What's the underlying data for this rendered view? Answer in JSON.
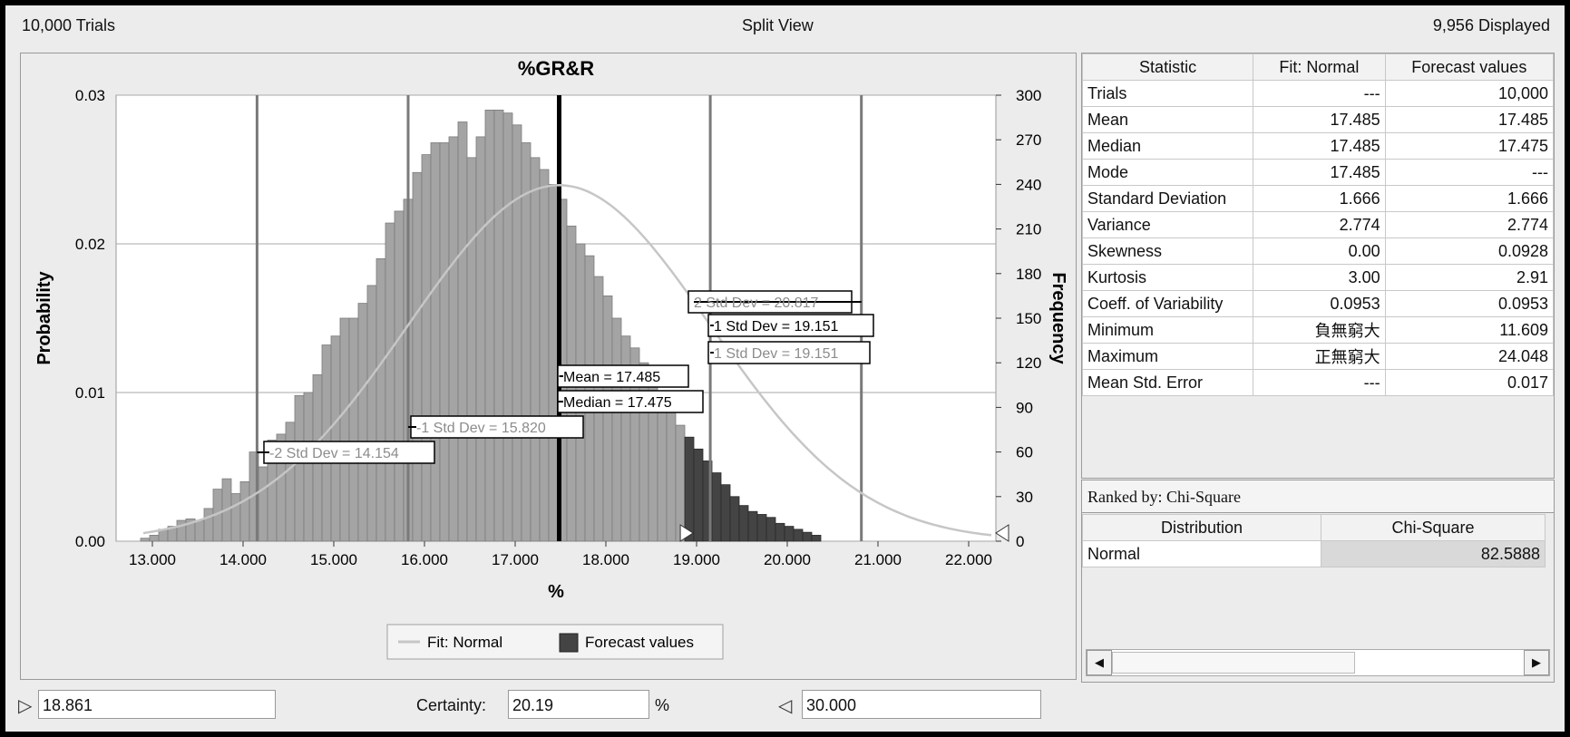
{
  "header": {
    "trials": "10,000 Trials",
    "view": "Split View",
    "displayed": "9,956 Displayed"
  },
  "chart_data": {
    "type": "bar",
    "title": "%GR&R",
    "xlabel": "%",
    "ylabel_left": "Probability",
    "ylabel_right": "Frequency",
    "xlim": [
      12.6,
      22.3
    ],
    "ylim_left": [
      0,
      0.03
    ],
    "ylim_right": [
      0,
      300
    ],
    "x_ticks": [
      "13.000",
      "14.000",
      "15.000",
      "16.000",
      "17.000",
      "18.000",
      "19.000",
      "20.000",
      "21.000",
      "22.000"
    ],
    "y_ticks_left": [
      "0.00",
      "0.01",
      "0.02",
      "0.03"
    ],
    "y_ticks_right": [
      "0",
      "30",
      "60",
      "90",
      "120",
      "150",
      "180",
      "210",
      "240",
      "270",
      "300"
    ],
    "bins": {
      "start": 12.87,
      "width": 0.1,
      "frequency": [
        2,
        4,
        8,
        10,
        14,
        15,
        14,
        22,
        35,
        42,
        32,
        40,
        60,
        50,
        68,
        72,
        80,
        98,
        100,
        112,
        132,
        138,
        150,
        150,
        160,
        172,
        190,
        214,
        222,
        230,
        248,
        260,
        268,
        268,
        272,
        282,
        258,
        272,
        290,
        290,
        288,
        280,
        268,
        258,
        250,
        240,
        230,
        212,
        200,
        192,
        178,
        165,
        150,
        138,
        130,
        120,
        110,
        98,
        88,
        78,
        70,
        62,
        54,
        46,
        38,
        30,
        24,
        20,
        18,
        16,
        12,
        10,
        8,
        6,
        4
      ],
      "split_at": 18.861
    },
    "series": [
      {
        "name": "Fit: Normal",
        "type": "line",
        "mean": 17.485,
        "std": 1.666,
        "color": "#c6c6c6"
      },
      {
        "name": "Forecast values",
        "type": "bar",
        "color_in": "#a4a4a4",
        "color_out": "#444444"
      }
    ],
    "annotations": [
      {
        "label": "2 Std Dev = 20.817",
        "x": 20.817,
        "style": "gray"
      },
      {
        "label": "1 Std Dev = 19.151",
        "x": 19.151,
        "style": "black"
      },
      {
        "label": "1 Std Dev = 19.151",
        "x": 19.151,
        "style": "gray"
      },
      {
        "label": "Mean = 17.485",
        "x": 17.485,
        "style": "black"
      },
      {
        "label": "Median = 17.475",
        "x": 17.475,
        "style": "black"
      },
      {
        "label": "-1 Std Dev = 15.820",
        "x": 15.82,
        "style": "gray"
      },
      {
        "label": "-2 Std Dev = 14.154",
        "x": 14.154,
        "style": "gray"
      }
    ],
    "legend": [
      "Fit: Normal",
      "Forecast values"
    ],
    "legend_position": "bottom-center",
    "grid": true
  },
  "stats": {
    "headers": [
      "Statistic",
      "Fit: Normal",
      "Forecast values"
    ],
    "rows": [
      [
        "Trials",
        "---",
        "10,000"
      ],
      [
        "Mean",
        "17.485",
        "17.485"
      ],
      [
        "Median",
        "17.485",
        "17.475"
      ],
      [
        "Mode",
        "17.485",
        "---"
      ],
      [
        "Standard Deviation",
        "1.666",
        "1.666"
      ],
      [
        "Variance",
        "2.774",
        "2.774"
      ],
      [
        "Skewness",
        "0.00",
        "0.0928"
      ],
      [
        "Kurtosis",
        "3.00",
        "2.91"
      ],
      [
        "Coeff. of Variability",
        "0.0953",
        "0.0953"
      ],
      [
        "Minimum",
        "負無窮大",
        "11.609"
      ],
      [
        "Maximum",
        "正無窮大",
        "24.048"
      ],
      [
        "Mean Std. Error",
        "---",
        "0.017"
      ]
    ]
  },
  "fit": {
    "ranked_by": "Ranked by: Chi-Square",
    "headers": [
      "Distribution",
      "Chi-Square"
    ],
    "rows": [
      [
        "Normal",
        "82.5888"
      ]
    ]
  },
  "controls": {
    "left_value": "18.861",
    "certainty_label": "Certainty:",
    "certainty_value": "20.19",
    "percent": "%",
    "right_value": "30.000"
  }
}
